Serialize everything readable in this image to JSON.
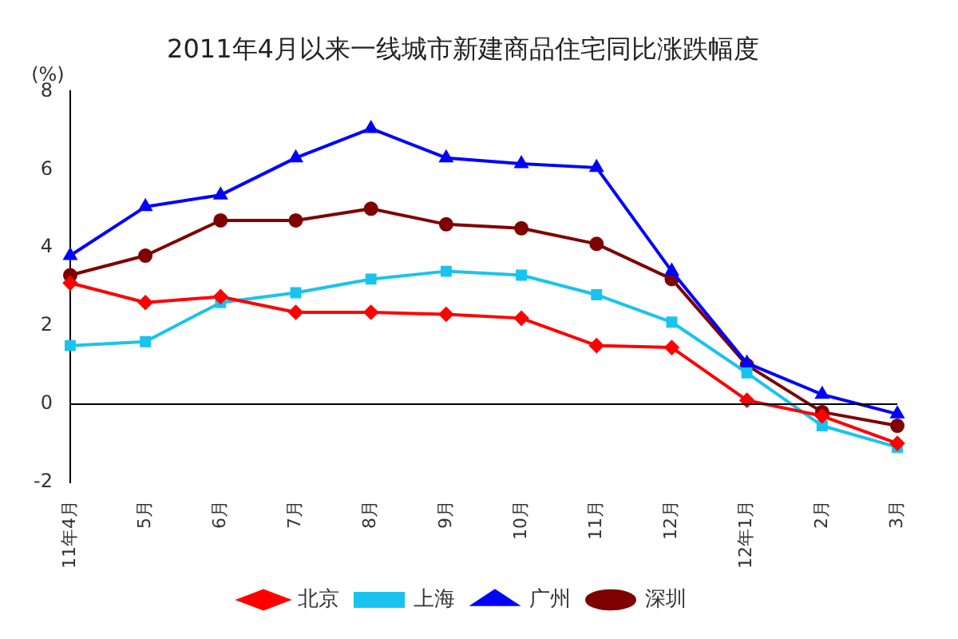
{
  "chart_data": {
    "type": "line",
    "title": "2011年4月以来一线城市新建商品住宅同比涨跌幅度",
    "ylabel": "(%)",
    "categories": [
      "11年4月",
      "5月",
      "6月",
      "7月",
      "8月",
      "9月",
      "10月",
      "11月",
      "12月",
      "12年1月",
      "2月",
      "3月"
    ],
    "series": [
      {
        "name": "北京",
        "color": "#ff0000",
        "marker": "diamond",
        "values": [
          3.1,
          2.6,
          2.75,
          2.35,
          2.35,
          2.3,
          2.2,
          1.5,
          1.45,
          0.1,
          -0.3,
          -1.0
        ]
      },
      {
        "name": "上海",
        "color": "#19c3ef",
        "marker": "square",
        "values": [
          1.5,
          1.6,
          2.6,
          2.85,
          3.2,
          3.4,
          3.3,
          2.8,
          2.1,
          0.8,
          -0.55,
          -1.1
        ]
      },
      {
        "name": "广州",
        "color": "#0000ff",
        "marker": "triangle",
        "values": [
          3.8,
          5.05,
          5.35,
          6.3,
          7.05,
          6.3,
          6.15,
          6.05,
          3.4,
          1.05,
          0.25,
          -0.25
        ]
      },
      {
        "name": "深圳",
        "color": "#7f0000",
        "marker": "circle",
        "values": [
          3.3,
          3.8,
          4.7,
          4.7,
          5.0,
          4.6,
          4.5,
          4.1,
          3.2,
          1.0,
          -0.2,
          -0.55
        ]
      }
    ],
    "ylim": [
      -2,
      8
    ],
    "yticks": [
      -2,
      0,
      2,
      4,
      6,
      8
    ],
    "grid": false,
    "legend": "bottom",
    "line_style": "solid",
    "ref_lines": [
      {
        "axis": "y",
        "value": 0,
        "color": "#000000"
      }
    ]
  }
}
